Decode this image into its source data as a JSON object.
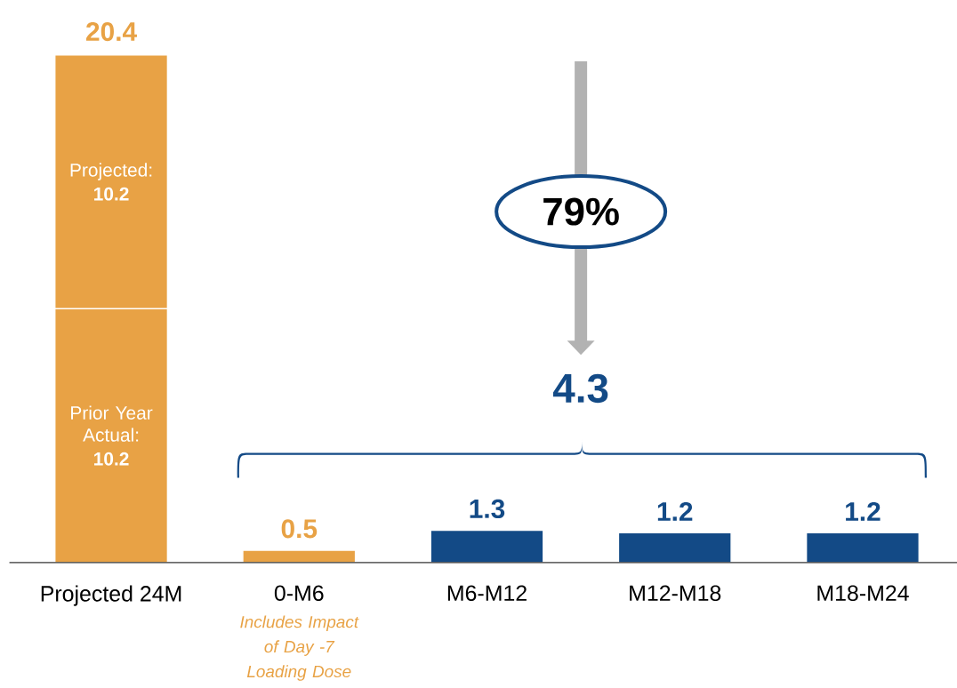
{
  "chart_data": {
    "type": "bar",
    "stacked": true,
    "categories": [
      "Projected 24M",
      "0-M6",
      "M6-M12",
      "M12-M18",
      "M18-M24"
    ],
    "series": [
      {
        "name": "Prior Year Actual:",
        "color": "#e8a245",
        "values": [
          10.2,
          null,
          null,
          null,
          null
        ],
        "value_labels": [
          "10.2",
          null,
          null,
          null,
          null
        ]
      },
      {
        "name": "Projected:",
        "color": "#e8a245",
        "values": [
          10.2,
          null,
          null,
          null,
          null
        ],
        "value_labels": [
          "10.2",
          null,
          null,
          null,
          null
        ]
      },
      {
        "colors": [
          "#e8a245",
          "#e8a245",
          "#134a86",
          "#134a86",
          "#134a86"
        ],
        "values": [
          null,
          0.5,
          1.3,
          1.2,
          1.2
        ],
        "value_labels": [
          null,
          "0.5",
          "1.3",
          "1.2",
          "1.2"
        ]
      }
    ],
    "totals": [
      "20.4",
      null,
      null,
      null,
      null
    ],
    "annotations": [
      "79%",
      "4.3",
      "Includes Impact of Day -7 Loading Dose"
    ]
  }
}
